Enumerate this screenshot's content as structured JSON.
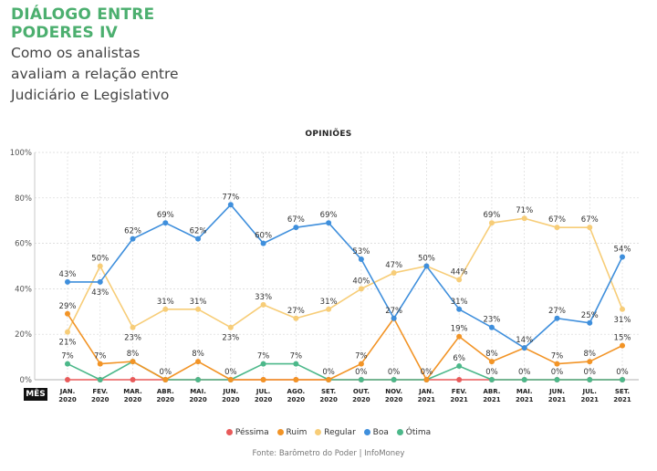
{
  "header": {
    "title_line1": "DIÁLOGO ENTRE",
    "title_line2": "PODERES IV",
    "subtitle_line1": "Como os analistas",
    "subtitle_line2": "avaliam a relação entre",
    "subtitle_line3": "Judiciário e Legislativo"
  },
  "x_axis_marker": "MÊS",
  "source": "Fonte: Barômetro do Poder | InfoMoney",
  "colors": {
    "Péssima": "#e85a5a",
    "Ruim": "#f29426",
    "Regular": "#f7cd78",
    "Boa": "#3f8fdc",
    "Ótima": "#4cb88a",
    "grid": "#d6d6d6",
    "title": "#4caf6f"
  },
  "chart_data": {
    "type": "line",
    "title": "OPINIÕES",
    "xlabel": "MÊS",
    "ylabel": "",
    "ylim": [
      0,
      100
    ],
    "yticks": [
      "0%",
      "20%",
      "40%",
      "60%",
      "80%",
      "100%"
    ],
    "categories": [
      [
        "JAN.",
        "2020"
      ],
      [
        "FEV.",
        "2020"
      ],
      [
        "MAR.",
        "2020"
      ],
      [
        "ABR.",
        "2020"
      ],
      [
        "MAI.",
        "2020"
      ],
      [
        "JUN.",
        "2020"
      ],
      [
        "JUL.",
        "2020"
      ],
      [
        "AGO.",
        "2020"
      ],
      [
        "SET.",
        "2020"
      ],
      [
        "OUT.",
        "2020"
      ],
      [
        "NOV.",
        "2020"
      ],
      [
        "JAN.",
        "2021"
      ],
      [
        "FEV.",
        "2021"
      ],
      [
        "ABR.",
        "2021"
      ],
      [
        "MAI.",
        "2021"
      ],
      [
        "JUN.",
        "2021"
      ],
      [
        "JUL.",
        "2021"
      ],
      [
        "SET.",
        "2021"
      ]
    ],
    "series": [
      {
        "name": "Péssima",
        "values": [
          0,
          0,
          0,
          0,
          0,
          0,
          0,
          0,
          0,
          0,
          0,
          0,
          0,
          0,
          0,
          0,
          0,
          0
        ]
      },
      {
        "name": "Ruim",
        "values": [
          29,
          7,
          8,
          0,
          8,
          0,
          0,
          0,
          0,
          7,
          27,
          0,
          19,
          8,
          14,
          7,
          8,
          15
        ]
      },
      {
        "name": "Regular",
        "values": [
          21,
          50,
          23,
          31,
          31,
          23,
          33,
          27,
          31,
          40,
          47,
          50,
          44,
          69,
          71,
          67,
          67,
          31
        ]
      },
      {
        "name": "Boa",
        "values": [
          43,
          43,
          62,
          69,
          62,
          77,
          60,
          67,
          69,
          53,
          27,
          50,
          31,
          23,
          14,
          27,
          25,
          54
        ]
      },
      {
        "name": "Ótima",
        "values": [
          7,
          0,
          8,
          0,
          0,
          0,
          7,
          7,
          0,
          0,
          0,
          0,
          6,
          0,
          0,
          0,
          0,
          0
        ]
      }
    ],
    "data_labels": [
      {
        "series": "Boa",
        "index": 0,
        "text": "43%"
      },
      {
        "series": "Ruim",
        "index": 0,
        "text": "29%"
      },
      {
        "series": "Regular",
        "index": 0,
        "text": "21%"
      },
      {
        "series": "Ótima",
        "index": 0,
        "text": "7%"
      },
      {
        "series": "Regular",
        "index": 1,
        "text": "50%"
      },
      {
        "series": "Boa",
        "index": 1,
        "text": "43%"
      },
      {
        "series": "Ruim",
        "index": 1,
        "text": "7%"
      },
      {
        "series": "Boa",
        "index": 2,
        "text": "62%"
      },
      {
        "series": "Regular",
        "index": 2,
        "text": "23%"
      },
      {
        "series": "Ruim",
        "index": 2,
        "text": "8%"
      },
      {
        "series": "Boa",
        "index": 3,
        "text": "69%"
      },
      {
        "series": "Regular",
        "index": 3,
        "text": "31%"
      },
      {
        "series": "Ruim",
        "index": 3,
        "text": "0%"
      },
      {
        "series": "Boa",
        "index": 4,
        "text": "62%"
      },
      {
        "series": "Regular",
        "index": 4,
        "text": "31%"
      },
      {
        "series": "Ruim",
        "index": 4,
        "text": "8%"
      },
      {
        "series": "Boa",
        "index": 5,
        "text": "77%"
      },
      {
        "series": "Regular",
        "index": 5,
        "text": "23%"
      },
      {
        "series": "Ruim",
        "index": 5,
        "text": "0%"
      },
      {
        "series": "Boa",
        "index": 6,
        "text": "60%"
      },
      {
        "series": "Regular",
        "index": 6,
        "text": "33%"
      },
      {
        "series": "Ótima",
        "index": 6,
        "text": "7%"
      },
      {
        "series": "Boa",
        "index": 7,
        "text": "67%"
      },
      {
        "series": "Regular",
        "index": 7,
        "text": "27%"
      },
      {
        "series": "Ótima",
        "index": 7,
        "text": "7%"
      },
      {
        "series": "Boa",
        "index": 8,
        "text": "69%"
      },
      {
        "series": "Regular",
        "index": 8,
        "text": "31%"
      },
      {
        "series": "Ruim",
        "index": 8,
        "text": "0%"
      },
      {
        "series": "Boa",
        "index": 9,
        "text": "53%"
      },
      {
        "series": "Regular",
        "index": 9,
        "text": "40%"
      },
      {
        "series": "Ruim",
        "index": 9,
        "text": "7%"
      },
      {
        "series": "Ótima",
        "index": 9,
        "text": "0%"
      },
      {
        "series": "Regular",
        "index": 10,
        "text": "47%"
      },
      {
        "series": "Ruim",
        "index": 10,
        "text": "27%"
      },
      {
        "series": "Ótima",
        "index": 10,
        "text": "0%"
      },
      {
        "series": "Boa",
        "index": 11,
        "text": "50%"
      },
      {
        "series": "Ruim",
        "index": 11,
        "text": "0%"
      },
      {
        "series": "Regular",
        "index": 12,
        "text": "44%"
      },
      {
        "series": "Boa",
        "index": 12,
        "text": "31%"
      },
      {
        "series": "Ruim",
        "index": 12,
        "text": "19%"
      },
      {
        "series": "Ótima",
        "index": 12,
        "text": "6%"
      },
      {
        "series": "Regular",
        "index": 13,
        "text": "69%"
      },
      {
        "series": "Boa",
        "index": 13,
        "text": "23%"
      },
      {
        "series": "Ruim",
        "index": 13,
        "text": "8%"
      },
      {
        "series": "Ótima",
        "index": 13,
        "text": "0%"
      },
      {
        "series": "Regular",
        "index": 14,
        "text": "71%"
      },
      {
        "series": "Boa",
        "index": 14,
        "text": "14%"
      },
      {
        "series": "Ótima",
        "index": 14,
        "text": "0%"
      },
      {
        "series": "Regular",
        "index": 15,
        "text": "67%"
      },
      {
        "series": "Boa",
        "index": 15,
        "text": "27%"
      },
      {
        "series": "Ruim",
        "index": 15,
        "text": "7%"
      },
      {
        "series": "Ótima",
        "index": 15,
        "text": "0%"
      },
      {
        "series": "Regular",
        "index": 16,
        "text": "67%"
      },
      {
        "series": "Boa",
        "index": 16,
        "text": "25%"
      },
      {
        "series": "Ruim",
        "index": 16,
        "text": "8%"
      },
      {
        "series": "Ótima",
        "index": 16,
        "text": "0%"
      },
      {
        "series": "Boa",
        "index": 17,
        "text": "54%"
      },
      {
        "series": "Regular",
        "index": 17,
        "text": "31%"
      },
      {
        "series": "Ruim",
        "index": 17,
        "text": "15%"
      },
      {
        "series": "Ótima",
        "index": 17,
        "text": "0%"
      }
    ],
    "legend": [
      "Péssima",
      "Ruim",
      "Regular",
      "Boa",
      "Ótima"
    ],
    "legend_position": "bottom-center",
    "grid": true
  }
}
